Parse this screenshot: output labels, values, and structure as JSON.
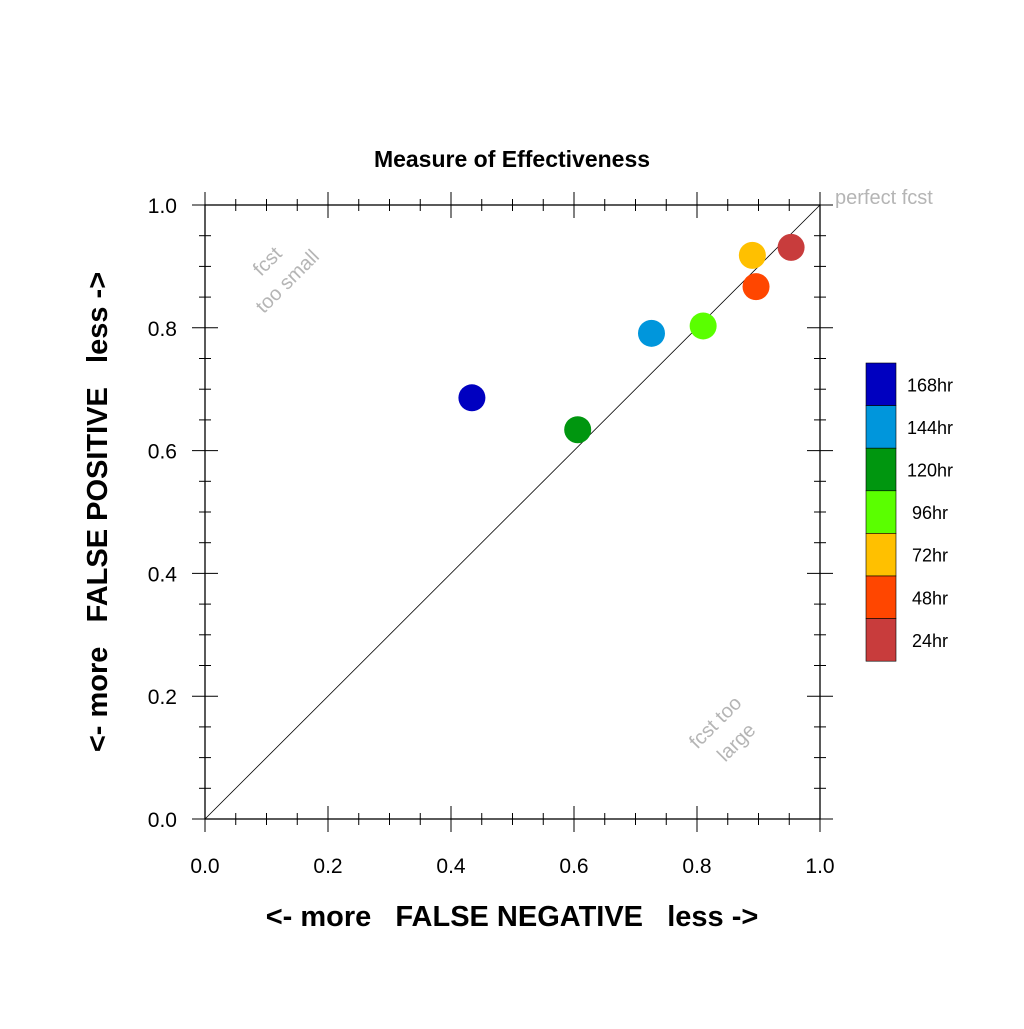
{
  "chart_data": {
    "type": "scatter",
    "title": "Measure of Effectiveness",
    "xlabel": "<- more   FALSE NEGATIVE   less ->",
    "ylabel": "<- more   FALSE POSITIVE   less ->",
    "xlim": [
      0.0,
      1.0
    ],
    "ylim": [
      0.0,
      1.0
    ],
    "xticks": [
      "0.0",
      "0.2",
      "0.4",
      "0.6",
      "0.8",
      "1.0"
    ],
    "yticks": [
      "0.0",
      "0.2",
      "0.4",
      "0.6",
      "0.8",
      "1.0"
    ],
    "grid": false,
    "reference_line": "y = x",
    "legend_position": "right",
    "annotations": {
      "perfect": "perfect fcst",
      "small_line1": "fcst",
      "small_line2": "too small",
      "large_line1": "fcst too",
      "large_line2": "large"
    },
    "series": [
      {
        "name": "168hr",
        "color": "#0000c0",
        "x": 0.434,
        "y": 0.686
      },
      {
        "name": "144hr",
        "color": "#0096dc",
        "x": 0.726,
        "y": 0.791
      },
      {
        "name": "120hr",
        "color": "#00960f",
        "x": 0.606,
        "y": 0.634
      },
      {
        "name": "96hr",
        "color": "#5aff00",
        "x": 0.81,
        "y": 0.803
      },
      {
        "name": "72hr",
        "color": "#ffc000",
        "x": 0.89,
        "y": 0.918
      },
      {
        "name": "48hr",
        "color": "#ff4600",
        "x": 0.896,
        "y": 0.867
      },
      {
        "name": "24hr",
        "color": "#c83c3c",
        "x": 0.953,
        "y": 0.931
      }
    ]
  }
}
